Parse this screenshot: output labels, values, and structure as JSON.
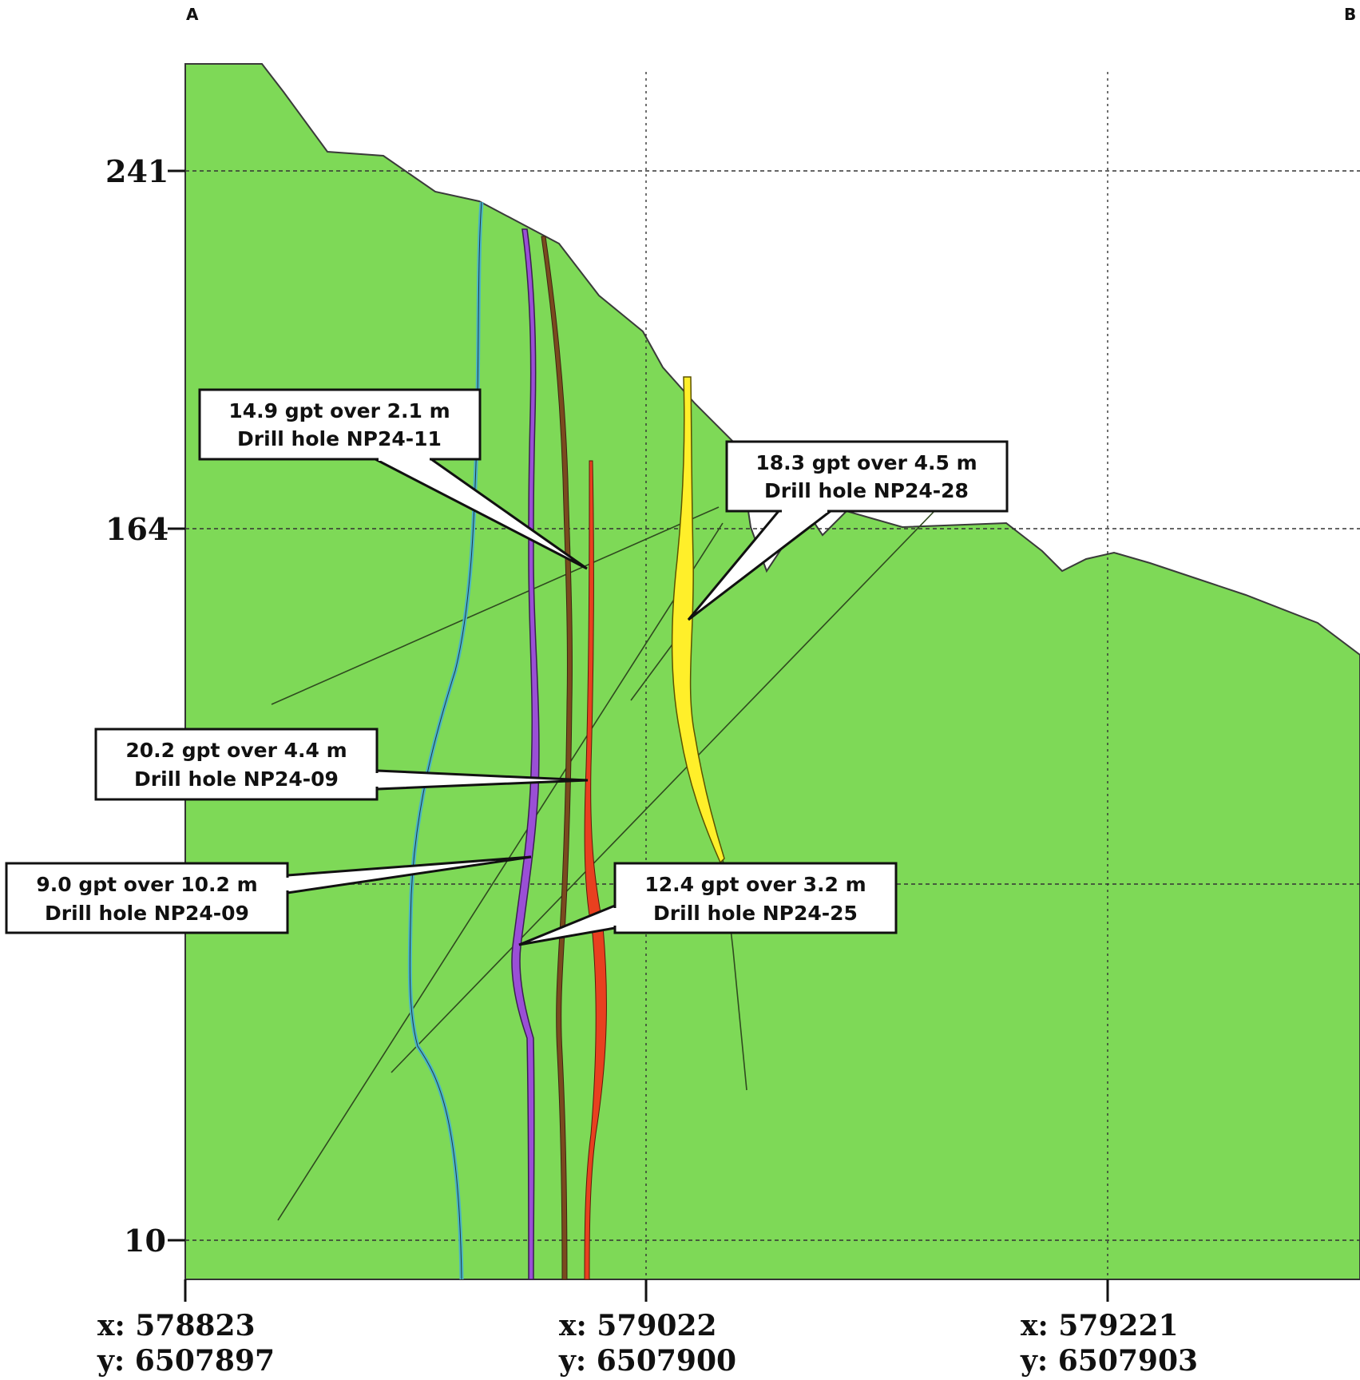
{
  "section_ends": {
    "start": "A",
    "end": "B"
  },
  "elevation_labels": [
    "241",
    "164",
    "10"
  ],
  "coordinate_labels": [
    {
      "x": "x: 578823",
      "y": "y: 6507897"
    },
    {
      "x": "x: 579022",
      "y": "y: 6507900"
    },
    {
      "x": "x: 579221",
      "y": "y: 6507903"
    }
  ],
  "callouts": [
    {
      "line1": "14.9 gpt over 2.1 m",
      "line2": "Drill hole NP24-11"
    },
    {
      "line1": "18.3 gpt over 4.5 m",
      "line2": "Drill hole NP24-28"
    },
    {
      "line1": "20.2 gpt over 4.4 m",
      "line2": "Drill hole NP24-09"
    },
    {
      "line1": "9.0 gpt over 10.2 m",
      "line2": "Drill hole NP24-09"
    },
    {
      "line1": "12.4 gpt over 3.2 m",
      "line2": "Drill hole NP24-25"
    }
  ],
  "colors": {
    "ground": "#7ed957",
    "vein_yellow": "#ffef2a",
    "vein_purple": "#9a4fd6",
    "vein_red": "#e8401f",
    "vein_cyan": "#4ab3c8",
    "vein_brown": "#7a4a1e"
  }
}
